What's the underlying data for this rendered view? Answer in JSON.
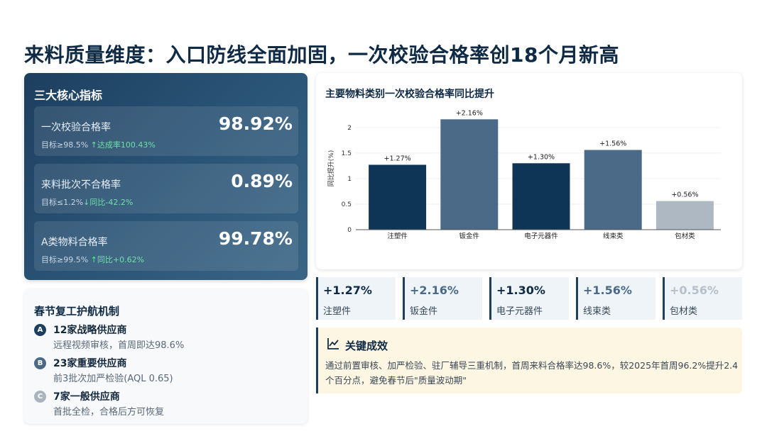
{
  "page_title": "来料质量维度：入口防线全面加固，一次校验合格率创18个月新高",
  "kpi": {
    "title": "三大核心指标",
    "items": [
      {
        "label": "一次校验合格率",
        "value": "98.92%",
        "target": "目标≥98.5%",
        "compare": "↑达成率100.43%"
      },
      {
        "label": "来料批次不合格率",
        "value": "0.89%",
        "target": "目标≤1.2%",
        "compare": "↓同比-42.2%"
      },
      {
        "label": "A类物料合格率",
        "value": "99.78%",
        "target": "目标≥99.5%",
        "compare": "↑同比+0.62%"
      }
    ]
  },
  "mechanism": {
    "title": "春节复工护航机制",
    "tiers": [
      {
        "badge": "A",
        "name": "12家战略供应商",
        "desc": "远程视频审核，首周即达98.6%",
        "color": "#1d3f5f"
      },
      {
        "badge": "B",
        "name": "23家重要供应商",
        "desc": "前3批次加严检验(AQL 0.65)",
        "color": "#4a6a88"
      },
      {
        "badge": "C",
        "name": "7家一般供应商",
        "desc": "首批全检，合格后方可恢复",
        "color": "#aab4bf"
      }
    ]
  },
  "chart_data": {
    "type": "bar",
    "title": "主要物料类别一次校验合格率同比提升",
    "ylabel": "同比提升(%)",
    "categories": [
      "注塑件",
      "钣金件",
      "电子元器件",
      "线束类",
      "包材类"
    ],
    "values": [
      1.27,
      2.16,
      1.3,
      1.56,
      0.56
    ],
    "data_labels": [
      "+1.27%",
      "+2.16%",
      "+1.30%",
      "+1.56%",
      "+0.56%"
    ],
    "colors": [
      "#0f3556",
      "#4a6a88",
      "#0f3556",
      "#4a6a88",
      "#aeb8c3"
    ],
    "ylim": [
      0,
      2.4
    ],
    "yticks": [
      "0",
      "0.5",
      "1",
      "1.5",
      "2"
    ],
    "ytick_values": [
      0,
      0.5,
      1,
      1.5,
      2
    ],
    "grid": true
  },
  "stats": [
    {
      "value": "+1.27%",
      "label": "注塑件",
      "color": "#0f2a44"
    },
    {
      "value": "+2.16%",
      "label": "钣金件",
      "color": "#4a6a88"
    },
    {
      "value": "+1.30%",
      "label": "电子元器件",
      "color": "#0f2a44"
    },
    {
      "value": "+1.56%",
      "label": "线束类",
      "color": "#4a6a88"
    },
    {
      "value": "+0.56%",
      "label": "包材类",
      "color": "#b7c0ca"
    }
  ],
  "result": {
    "icon": "trend-chart-icon",
    "title": "关键成效",
    "text": "通过前置审核、加严检验、驻厂辅导三重机制，首周来料合格率达98.6%，较2025年首周96.2%提升2.4个百分点，避免春节后\"质量波动期\""
  }
}
